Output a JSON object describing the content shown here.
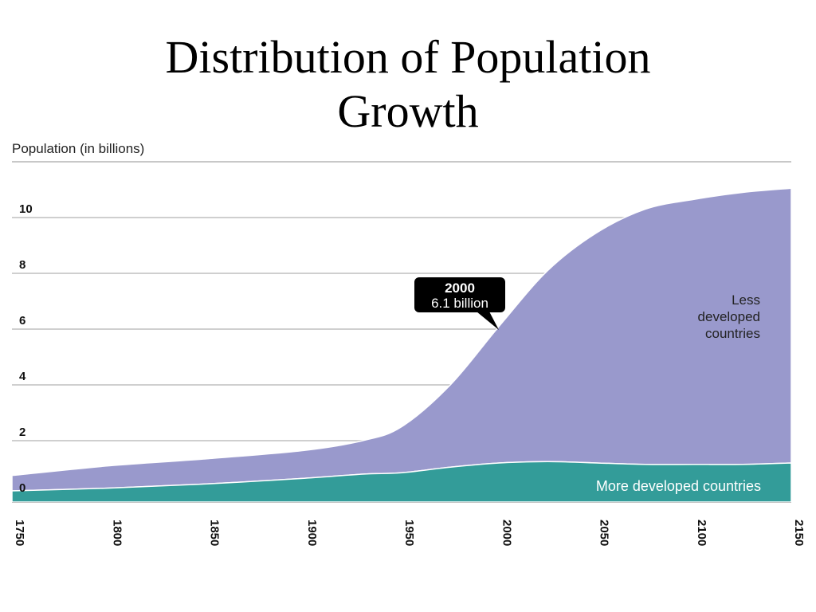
{
  "slide": {
    "title_line1": "Distribution of Population",
    "title_line2": "Growth"
  },
  "chart_data": {
    "type": "area",
    "stacked": true,
    "ylabel": "Population (in billions)",
    "xlabel": "",
    "xlim": [
      1750,
      2150
    ],
    "ylim": [
      0,
      11.5
    ],
    "y_ticks": [
      0,
      2,
      4,
      6,
      8,
      10
    ],
    "y_tick_labels": [
      "0",
      "2",
      "4",
      "6",
      "8",
      "10"
    ],
    "x_ticks": [
      1750,
      1800,
      1850,
      1900,
      1950,
      2000,
      2050,
      2100,
      2150
    ],
    "x_tick_labels": [
      "1750",
      "1800",
      "1850",
      "1900",
      "1950",
      "2000",
      "2050",
      "2100",
      "2150"
    ],
    "grid": "horizontal",
    "x": [
      1750,
      1800,
      1850,
      1900,
      1930,
      1950,
      1975,
      2000,
      2025,
      2050,
      2075,
      2100,
      2125,
      2150
    ],
    "series": [
      {
        "name": "More developed countries",
        "color": "#339c99",
        "values": [
          0.2,
          0.3,
          0.45,
          0.65,
          0.8,
          0.85,
          1.05,
          1.2,
          1.25,
          1.2,
          1.15,
          1.15,
          1.15,
          1.2
        ]
      },
      {
        "name": "Less developed countries",
        "color": "#9999cc",
        "values": [
          0.55,
          0.8,
          0.9,
          1.0,
          1.2,
          1.65,
          2.95,
          4.9,
          6.85,
          8.25,
          9.15,
          9.5,
          9.75,
          9.85
        ]
      }
    ],
    "annotations": [
      {
        "year_label": "2000",
        "value_label": "6.1 billion",
        "x": 2000,
        "y": 6.1
      }
    ],
    "area_labels": {
      "less_developed": [
        "Less",
        "developed",
        "countries"
      ],
      "more_developed": "More developed countries"
    }
  }
}
